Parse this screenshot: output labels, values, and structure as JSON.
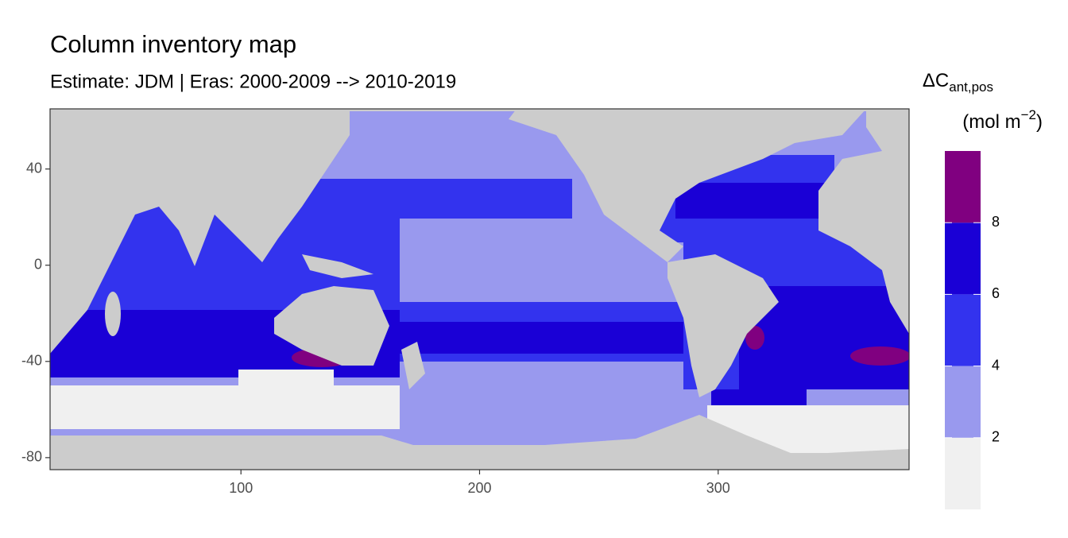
{
  "chart_data": {
    "type": "map",
    "title": "Column inventory map",
    "subtitle": "Estimate: JDM  | Eras: 2000-2009 --> 2010-2019",
    "xlim": [
      20,
      380
    ],
    "xticks": [
      100,
      200,
      300
    ],
    "ylim": [
      -85,
      65
    ],
    "yticks": [
      40,
      0,
      -40,
      -80
    ],
    "legend": {
      "title_symbol": "ΔC",
      "title_subscript": "ant,pos",
      "unit_prefix": "(mol m",
      "unit_exponent": "−2",
      "unit_suffix": ")",
      "limits": [
        0,
        10
      ],
      "breaks": [
        2,
        4,
        6,
        8
      ],
      "colors": [
        "#f0f0f0",
        "#9999ee",
        "#3333ee",
        "#1a00d6",
        "#800080"
      ]
    }
  }
}
